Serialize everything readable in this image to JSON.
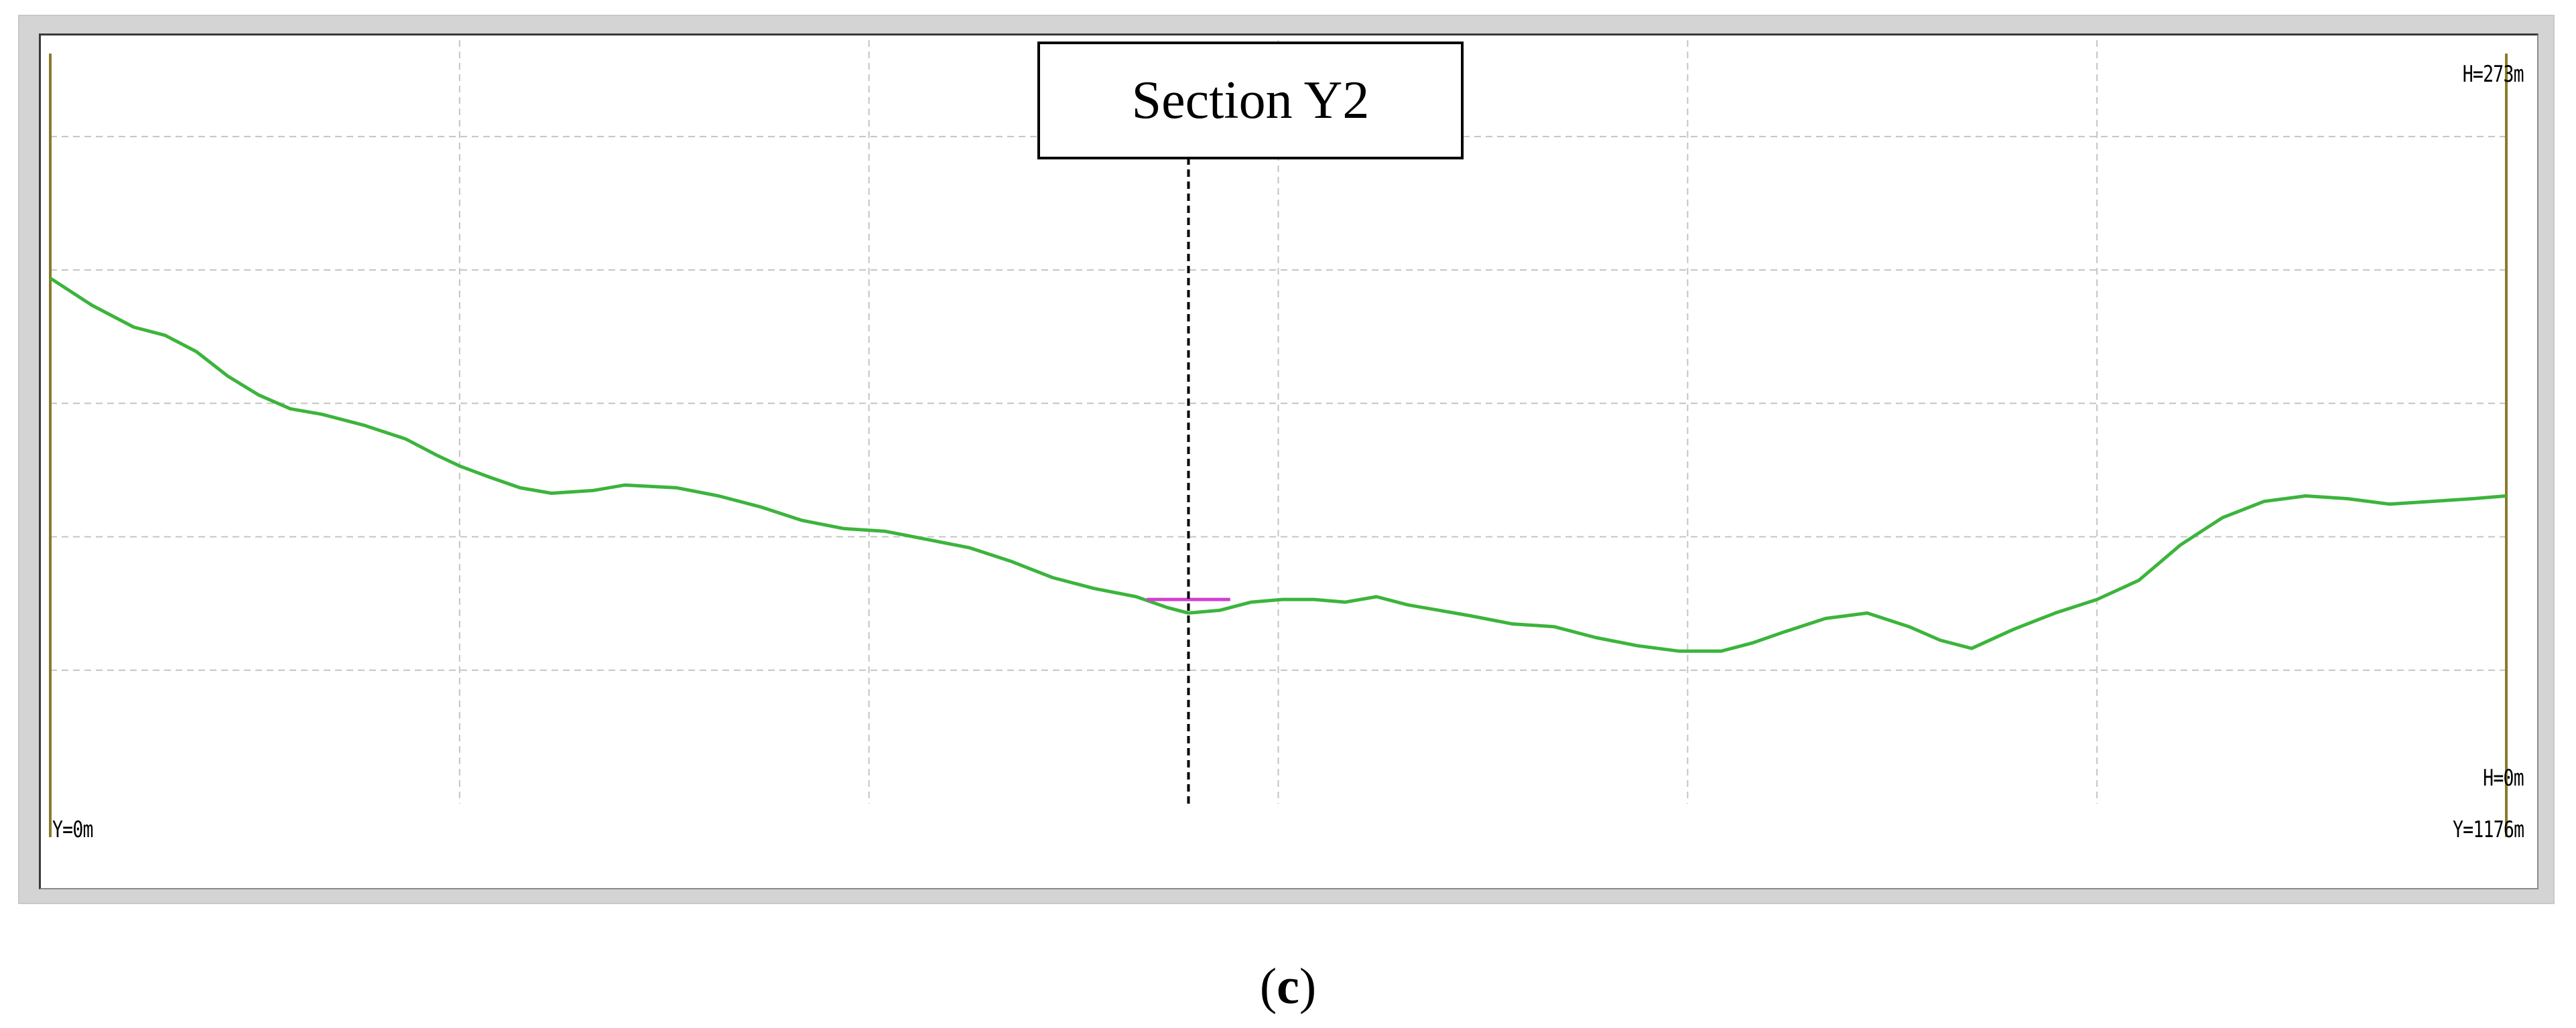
{
  "caption": {
    "open": "(",
    "letter": "c",
    "close": ")"
  },
  "section_label": "Section Y2",
  "corner_labels": {
    "h_max": "H=273m",
    "h_min": "H=0m",
    "y_min": "Y=0m",
    "y_max": "Y=1176m"
  },
  "colors": {
    "profile": "#3cb43c",
    "segment": "#d040d0",
    "grid": "#c4c4c4",
    "axis": "#8a7a2a",
    "section_line": "#000000"
  },
  "chart_data": {
    "type": "line",
    "title": "",
    "xlabel": "",
    "ylabel": "",
    "xlim": [
      0,
      1176
    ],
    "ylim": [
      0,
      273
    ],
    "grid": true,
    "x_grid": [
      196,
      392,
      588,
      784,
      980
    ],
    "y_grid": [
      49,
      98,
      147,
      196,
      245
    ],
    "section_x": 545,
    "series": [
      {
        "points": [
          [
            0,
            193
          ],
          [
            20,
            183
          ],
          [
            40,
            175
          ],
          [
            55,
            172
          ],
          [
            70,
            166
          ],
          [
            85,
            157
          ],
          [
            100,
            150
          ],
          [
            115,
            145
          ],
          [
            130,
            143
          ],
          [
            150,
            139
          ],
          [
            170,
            134
          ],
          [
            185,
            128
          ],
          [
            196,
            124
          ],
          [
            210,
            120
          ],
          [
            225,
            116
          ],
          [
            240,
            114
          ],
          [
            260,
            115
          ],
          [
            275,
            117
          ],
          [
            300,
            116
          ],
          [
            320,
            113
          ],
          [
            340,
            109
          ],
          [
            360,
            104
          ],
          [
            380,
            101
          ],
          [
            400,
            100
          ],
          [
            420,
            97
          ],
          [
            440,
            94
          ],
          [
            460,
            89
          ],
          [
            480,
            83
          ],
          [
            500,
            79
          ],
          [
            520,
            76
          ],
          [
            535,
            72
          ],
          [
            545,
            70
          ],
          [
            560,
            71
          ],
          [
            575,
            74
          ],
          [
            590,
            75
          ],
          [
            605,
            75
          ],
          [
            620,
            74
          ],
          [
            635,
            76
          ],
          [
            650,
            73
          ],
          [
            665,
            71
          ],
          [
            680,
            69
          ],
          [
            700,
            66
          ],
          [
            720,
            65
          ],
          [
            740,
            61
          ],
          [
            760,
            58
          ],
          [
            780,
            56
          ],
          [
            800,
            56
          ],
          [
            815,
            59
          ],
          [
            830,
            63
          ],
          [
            850,
            68
          ],
          [
            870,
            70
          ],
          [
            890,
            65
          ],
          [
            905,
            60
          ],
          [
            920,
            57
          ],
          [
            940,
            64
          ],
          [
            960,
            70
          ],
          [
            980,
            75
          ],
          [
            1000,
            82
          ],
          [
            1020,
            95
          ],
          [
            1040,
            105
          ],
          [
            1060,
            111
          ],
          [
            1080,
            113
          ],
          [
            1100,
            112
          ],
          [
            1120,
            110
          ],
          [
            1140,
            111
          ],
          [
            1160,
            112
          ],
          [
            1176,
            113
          ]
        ]
      },
      {
        "points": [
          [
            525,
            75
          ],
          [
            565,
            75
          ]
        ]
      }
    ]
  }
}
